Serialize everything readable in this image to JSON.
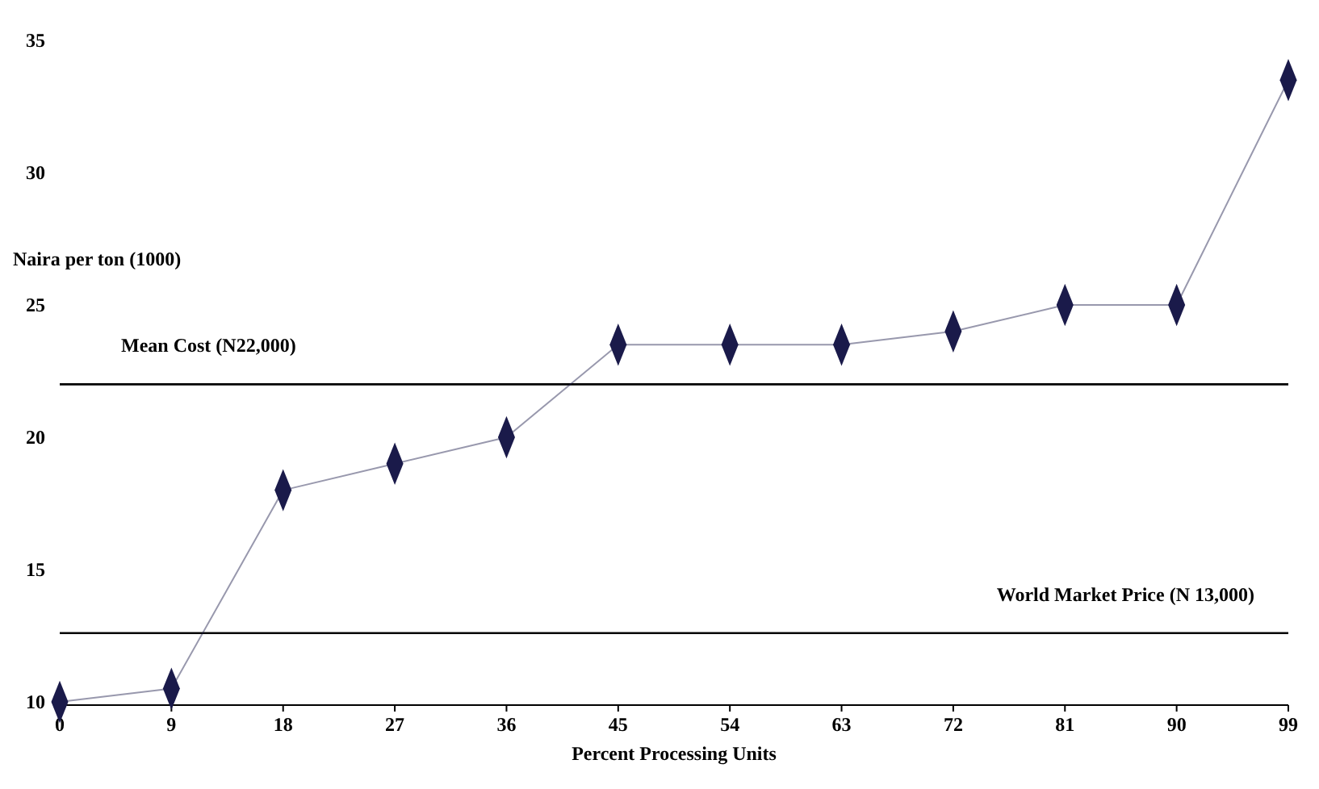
{
  "chart_data": {
    "type": "line",
    "xlabel": "Percent Processing Units",
    "ylabel": "Naira per ton (1000)",
    "x": [
      0,
      9,
      18,
      27,
      36,
      45,
      54,
      63,
      72,
      81,
      90,
      99
    ],
    "series": [
      {
        "color": "#1a1a4a",
        "values": [
          10,
          10.5,
          18,
          19,
          20,
          23.5,
          23.5,
          23.5,
          24,
          25,
          25,
          33.5
        ]
      }
    ],
    "xlim": [
      0,
      99
    ],
    "xticks": [
      0,
      9,
      18,
      27,
      36,
      45,
      54,
      63,
      72,
      81,
      90,
      99
    ],
    "ylim": [
      10,
      35
    ],
    "yticks": [
      10,
      15,
      20,
      25,
      30,
      35
    ],
    "marker": "diamond",
    "line_style": "solid",
    "grid": false,
    "ref_lines": [
      {
        "axis": "y",
        "value": 22,
        "label": "Mean Cost (N22,000)",
        "color": "#000000"
      },
      {
        "axis": "y",
        "value": 12.6,
        "label": "World Market Price (N 13,000)",
        "color": "#000000"
      }
    ]
  }
}
